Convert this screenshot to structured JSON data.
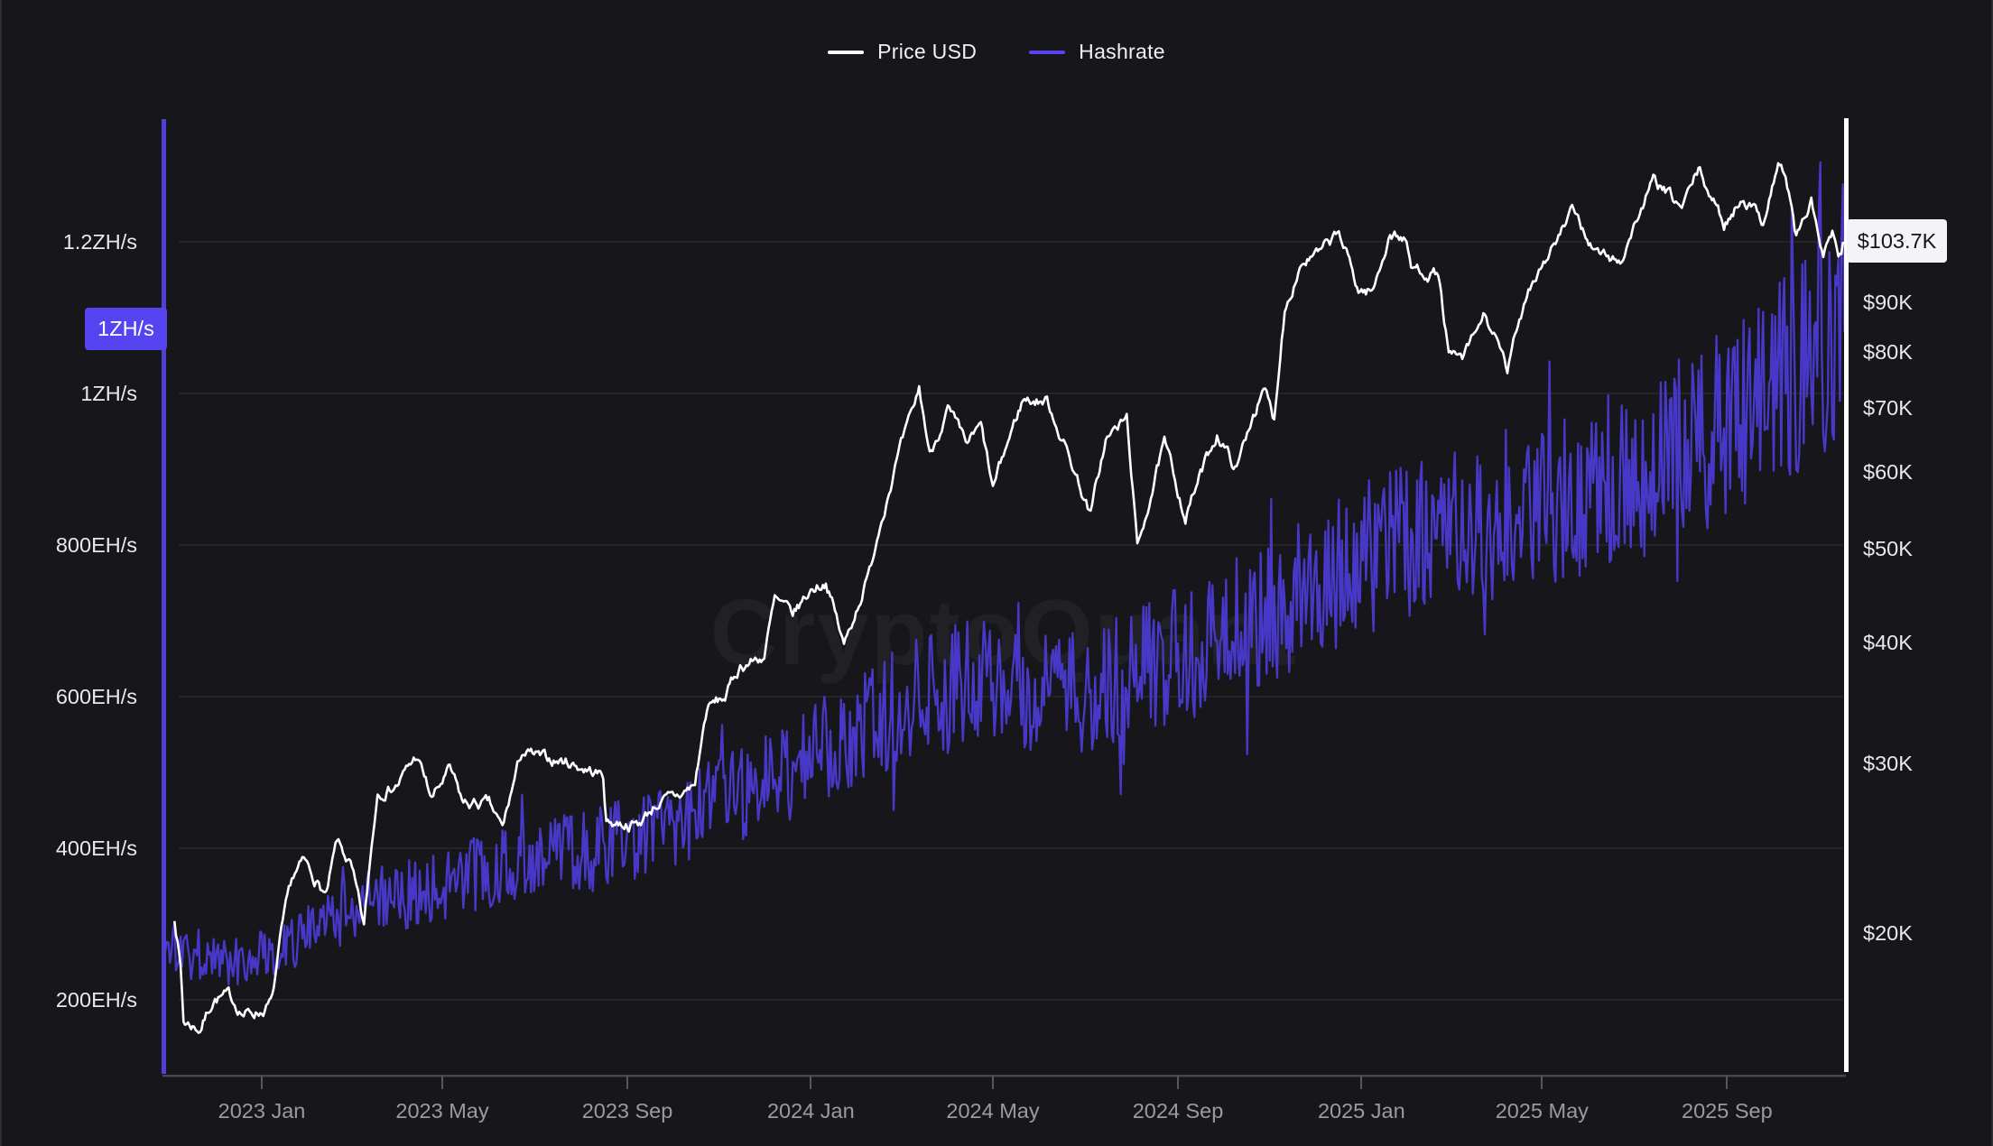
{
  "page": {
    "background": "#17171b"
  },
  "watermark": "CryptoQuant",
  "legend": {
    "items": [
      {
        "label": "Price USD",
        "color": "#ffffff"
      },
      {
        "label": "Hashrate",
        "color": "#5544ef"
      }
    ]
  },
  "chart_data": {
    "type": "line",
    "title": "",
    "xlabel": "",
    "ylabel_left": "Hashrate",
    "ylabel_right": "Price USD",
    "grid": "horizontal-faint",
    "legend_position": "top-center",
    "x_axis": {
      "range": [
        "2022-10-27",
        "2025-11-19"
      ],
      "ticks": [
        {
          "label": "2023 Jan",
          "date": "2023-01-01"
        },
        {
          "label": "2023 May",
          "date": "2023-05-01"
        },
        {
          "label": "2023 Sep",
          "date": "2023-09-01"
        },
        {
          "label": "2024 Jan",
          "date": "2024-01-01"
        },
        {
          "label": "2024 May",
          "date": "2024-05-01"
        },
        {
          "label": "2024 Sep",
          "date": "2024-09-01"
        },
        {
          "label": "2025 Jan",
          "date": "2025-01-01"
        },
        {
          "label": "2025 May",
          "date": "2025-05-01"
        },
        {
          "label": "2025 Sep",
          "date": "2025-09-01"
        }
      ]
    },
    "left_axis": {
      "scale": "linear",
      "unit": "EH/s",
      "range_ehs": [
        100,
        1365
      ],
      "axis_line_color": "#5140d6",
      "ticks": [
        {
          "label": "1.2ZH/s",
          "value": 1200
        },
        {
          "label": "1ZH/s",
          "value": 1000
        },
        {
          "label": "800EH/s",
          "value": 800
        },
        {
          "label": "600EH/s",
          "value": 600
        },
        {
          "label": "400EH/s",
          "value": 400
        },
        {
          "label": "200EH/s",
          "value": 200
        }
      ],
      "current_badge": {
        "label": "1ZH/s",
        "value": 1082,
        "color": "#5544ef"
      }
    },
    "right_axis": {
      "scale": "log",
      "unit": "USD",
      "range_usd": [
        14300,
        140000
      ],
      "axis_line_color": "#ffffff",
      "ticks": [
        {
          "label": "$90K",
          "value": 90000
        },
        {
          "label": "$80K",
          "value": 80000
        },
        {
          "label": "$70K",
          "value": 70000
        },
        {
          "label": "$60K",
          "value": 60000
        },
        {
          "label": "$50K",
          "value": 50000
        },
        {
          "label": "$40K",
          "value": 40000
        },
        {
          "label": "$30K",
          "value": 30000
        },
        {
          "label": "$20K",
          "value": 20000
        }
      ],
      "current_badge": {
        "label": "$103.7K",
        "value": 103700,
        "color": "#f4f4f6"
      }
    },
    "series": [
      {
        "name": "Price USD",
        "axis": "right",
        "color": "#ffffff",
        "anchors": [
          [
            "2022-11-04",
            20800
          ],
          [
            "2022-11-08",
            18500
          ],
          [
            "2022-11-10",
            16200
          ],
          [
            "2022-11-21",
            15900
          ],
          [
            "2022-11-30",
            17100
          ],
          [
            "2022-12-10",
            17200
          ],
          [
            "2022-12-20",
            16500
          ],
          [
            "2023-01-01",
            16600
          ],
          [
            "2023-01-08",
            17000
          ],
          [
            "2023-01-14",
            19900
          ],
          [
            "2023-01-21",
            22700
          ],
          [
            "2023-01-29",
            23700
          ],
          [
            "2023-02-13",
            21800
          ],
          [
            "2023-02-20",
            24800
          ],
          [
            "2023-03-01",
            23500
          ],
          [
            "2023-03-10",
            20200
          ],
          [
            "2023-03-19",
            28000
          ],
          [
            "2023-04-01",
            28500
          ],
          [
            "2023-04-14",
            30500
          ],
          [
            "2023-04-24",
            27500
          ],
          [
            "2023-05-06",
            29500
          ],
          [
            "2023-05-15",
            27200
          ],
          [
            "2023-06-01",
            27200
          ],
          [
            "2023-06-10",
            25600
          ],
          [
            "2023-06-23",
            30800
          ],
          [
            "2023-07-06",
            30300
          ],
          [
            "2023-07-23",
            30100
          ],
          [
            "2023-08-16",
            29100
          ],
          [
            "2023-08-18",
            26100
          ],
          [
            "2023-09-08",
            25900
          ],
          [
            "2023-09-20",
            27200
          ],
          [
            "2023-10-05",
            27700
          ],
          [
            "2023-10-16",
            28500
          ],
          [
            "2023-10-24",
            34200
          ],
          [
            "2023-11-05",
            35100
          ],
          [
            "2023-11-15",
            37800
          ],
          [
            "2023-12-01",
            38700
          ],
          [
            "2023-12-08",
            44200
          ],
          [
            "2023-12-20",
            42700
          ],
          [
            "2024-01-02",
            45500
          ],
          [
            "2024-01-11",
            46300
          ],
          [
            "2024-01-23",
            39600
          ],
          [
            "2024-02-09",
            47200
          ],
          [
            "2024-02-15",
            52300
          ],
          [
            "2024-02-28",
            62400
          ],
          [
            "2024-03-08",
            68500
          ],
          [
            "2024-03-13",
            73100
          ],
          [
            "2024-03-20",
            62500
          ],
          [
            "2024-04-01",
            69700
          ],
          [
            "2024-04-13",
            64000
          ],
          [
            "2024-04-23",
            66800
          ],
          [
            "2024-05-01",
            57500
          ],
          [
            "2024-05-21",
            71400
          ],
          [
            "2024-06-06",
            71100
          ],
          [
            "2024-06-24",
            60300
          ],
          [
            "2024-07-05",
            54100
          ],
          [
            "2024-07-15",
            64800
          ],
          [
            "2024-07-29",
            68200
          ],
          [
            "2024-08-05",
            49800
          ],
          [
            "2024-08-23",
            64100
          ],
          [
            "2024-09-06",
            53900
          ],
          [
            "2024-09-27",
            65800
          ],
          [
            "2024-10-10",
            60300
          ],
          [
            "2024-10-21",
            69200
          ],
          [
            "2024-10-29",
            72700
          ],
          [
            "2024-11-04",
            67800
          ],
          [
            "2024-11-11",
            88800
          ],
          [
            "2024-11-22",
            99000
          ],
          [
            "2024-12-05",
            101200
          ],
          [
            "2024-12-17",
            106100
          ],
          [
            "2024-12-30",
            92600
          ],
          [
            "2025-01-09",
            92500
          ],
          [
            "2025-01-20",
            106200
          ],
          [
            "2025-01-30",
            104700
          ],
          [
            "2025-02-03",
            97700
          ],
          [
            "2025-02-21",
            96200
          ],
          [
            "2025-02-28",
            79000
          ],
          [
            "2025-03-10",
            78600
          ],
          [
            "2025-03-24",
            87500
          ],
          [
            "2025-04-08",
            76300
          ],
          [
            "2025-04-22",
            93400
          ],
          [
            "2025-05-09",
            103200
          ],
          [
            "2025-05-22",
            111700
          ],
          [
            "2025-06-05",
            101600
          ],
          [
            "2025-06-22",
            99000
          ],
          [
            "2025-07-03",
            109600
          ],
          [
            "2025-07-14",
            119900
          ],
          [
            "2025-07-25",
            115800
          ],
          [
            "2025-08-02",
            112500
          ],
          [
            "2025-08-13",
            123300
          ],
          [
            "2025-08-30",
            108300
          ],
          [
            "2025-09-12",
            116100
          ],
          [
            "2025-09-25",
            109200
          ],
          [
            "2025-10-05",
            125300
          ],
          [
            "2025-10-10",
            121600
          ],
          [
            "2025-10-17",
            104900
          ],
          [
            "2025-10-27",
            114200
          ],
          [
            "2025-11-04",
            99800
          ],
          [
            "2025-11-10",
            106300
          ],
          [
            "2025-11-14",
            98500
          ],
          [
            "2025-11-19",
            103700
          ]
        ]
      },
      {
        "name": "Hashrate",
        "axis": "left",
        "color": "#4838c8",
        "anchors": [
          [
            "2022-10-27",
            275
          ],
          [
            "2022-11-15",
            262
          ],
          [
            "2022-12-15",
            252
          ],
          [
            "2023-01-15",
            272
          ],
          [
            "2023-02-15",
            302
          ],
          [
            "2023-03-15",
            328
          ],
          [
            "2023-04-15",
            342
          ],
          [
            "2023-05-15",
            362
          ],
          [
            "2023-06-15",
            378
          ],
          [
            "2023-07-15",
            392
          ],
          [
            "2023-08-15",
            404
          ],
          [
            "2023-09-15",
            420
          ],
          [
            "2023-10-15",
            446
          ],
          [
            "2023-11-15",
            468
          ],
          [
            "2023-12-15",
            500
          ],
          [
            "2024-01-15",
            538
          ],
          [
            "2024-02-15",
            572
          ],
          [
            "2024-03-15",
            600
          ],
          [
            "2024-04-15",
            618
          ],
          [
            "2024-05-15",
            612
          ],
          [
            "2024-06-15",
            598
          ],
          [
            "2024-07-15",
            618
          ],
          [
            "2024-08-15",
            644
          ],
          [
            "2024-09-15",
            668
          ],
          [
            "2024-10-15",
            700
          ],
          [
            "2024-11-15",
            732
          ],
          [
            "2024-12-15",
            766
          ],
          [
            "2025-01-15",
            790
          ],
          [
            "2025-02-15",
            812
          ],
          [
            "2025-03-15",
            826
          ],
          [
            "2025-04-15",
            852
          ],
          [
            "2025-05-15",
            872
          ],
          [
            "2025-06-15",
            888
          ],
          [
            "2025-07-15",
            906
          ],
          [
            "2025-08-15",
            938
          ],
          [
            "2025-09-15",
            986
          ],
          [
            "2025-10-15",
            1032
          ],
          [
            "2025-11-10",
            1068
          ],
          [
            "2025-11-19",
            1082
          ]
        ]
      }
    ],
    "render": {
      "noise": {
        "hash_amplitude": 0.135,
        "price_walk": 0.022,
        "seed_hash": 1337,
        "seed_price": 7
      },
      "gridline_color": "rgba(255,255,255,0.06)",
      "bottom_axis_color": "#46464c",
      "tick_color": "#55555b"
    }
  }
}
